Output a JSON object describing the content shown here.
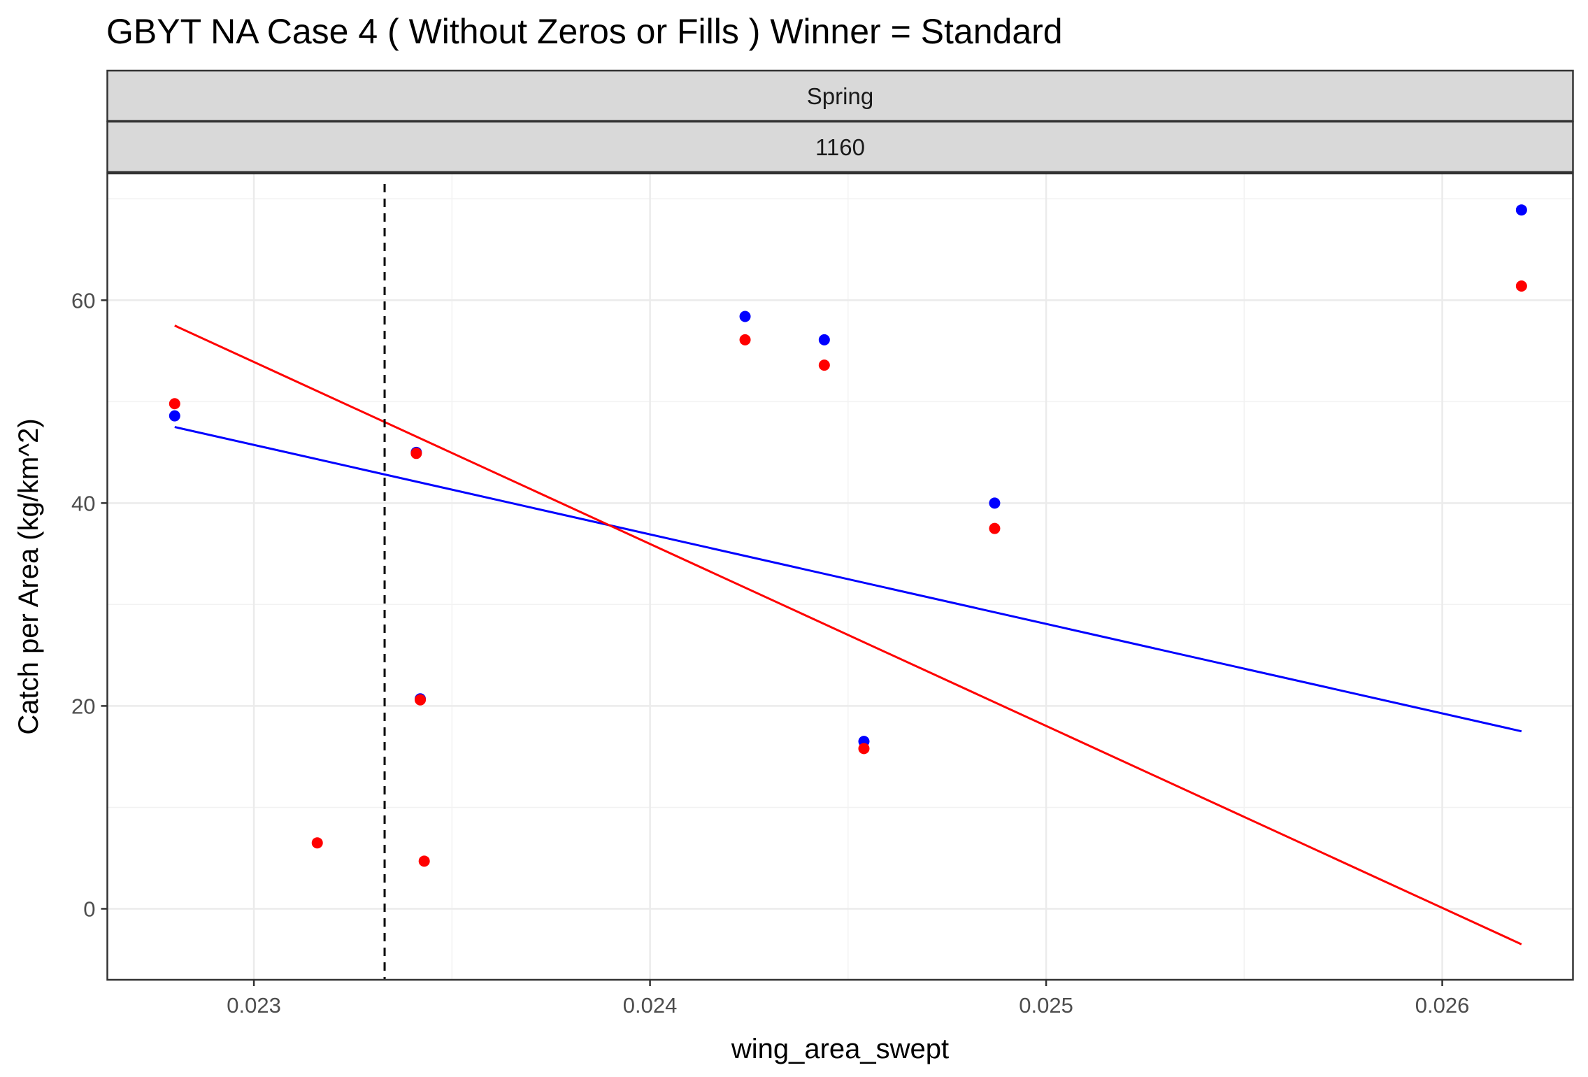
{
  "chart_data": {
    "type": "scatter",
    "title": "GBYT NA  Case 4  ( Without Zeros or Fills ) Winner = Standard",
    "facet_strips": [
      "Spring",
      "1160"
    ],
    "xlabel": "wing_area_swept",
    "ylabel": "Catch per Area (kg/km^2)",
    "xlim": [
      0.02263,
      0.02633
    ],
    "ylim": [
      -7,
      72.5
    ],
    "x_ticks": [
      0.023,
      0.024,
      0.025,
      0.026
    ],
    "x_tick_labels": [
      "0.023",
      "0.024",
      "0.025",
      "0.026"
    ],
    "y_ticks": [
      0,
      20,
      40,
      60
    ],
    "y_tick_labels": [
      "0",
      "20",
      "40",
      "60"
    ],
    "grid": true,
    "vline": {
      "x": 0.02333,
      "style": "dashed",
      "color": "#000000"
    },
    "series": [
      {
        "color": "#0000ff",
        "points": [
          {
            "x": 0.0228,
            "y": 48.6
          },
          {
            "x": 0.02341,
            "y": 45.0
          },
          {
            "x": 0.02342,
            "y": 20.7
          },
          {
            "x": 0.02424,
            "y": 58.4
          },
          {
            "x": 0.02444,
            "y": 56.1
          },
          {
            "x": 0.02454,
            "y": 16.5
          },
          {
            "x": 0.02487,
            "y": 40.0
          },
          {
            "x": 0.0262,
            "y": 68.9
          }
        ],
        "fit_line": [
          {
            "x": 0.0228,
            "y": 47.5
          },
          {
            "x": 0.0262,
            "y": 17.5
          }
        ]
      },
      {
        "color": "#ff0000",
        "points": [
          {
            "x": 0.0228,
            "y": 49.8
          },
          {
            "x": 0.02316,
            "y": 6.5
          },
          {
            "x": 0.02341,
            "y": 44.9
          },
          {
            "x": 0.02342,
            "y": 20.6
          },
          {
            "x": 0.02343,
            "y": 4.7
          },
          {
            "x": 0.02424,
            "y": 56.1
          },
          {
            "x": 0.02444,
            "y": 53.6
          },
          {
            "x": 0.02454,
            "y": 15.8
          },
          {
            "x": 0.02487,
            "y": 37.5
          },
          {
            "x": 0.0262,
            "y": 61.4
          }
        ],
        "fit_line": [
          {
            "x": 0.0228,
            "y": 57.5
          },
          {
            "x": 0.0262,
            "y": -3.5
          }
        ]
      }
    ]
  }
}
